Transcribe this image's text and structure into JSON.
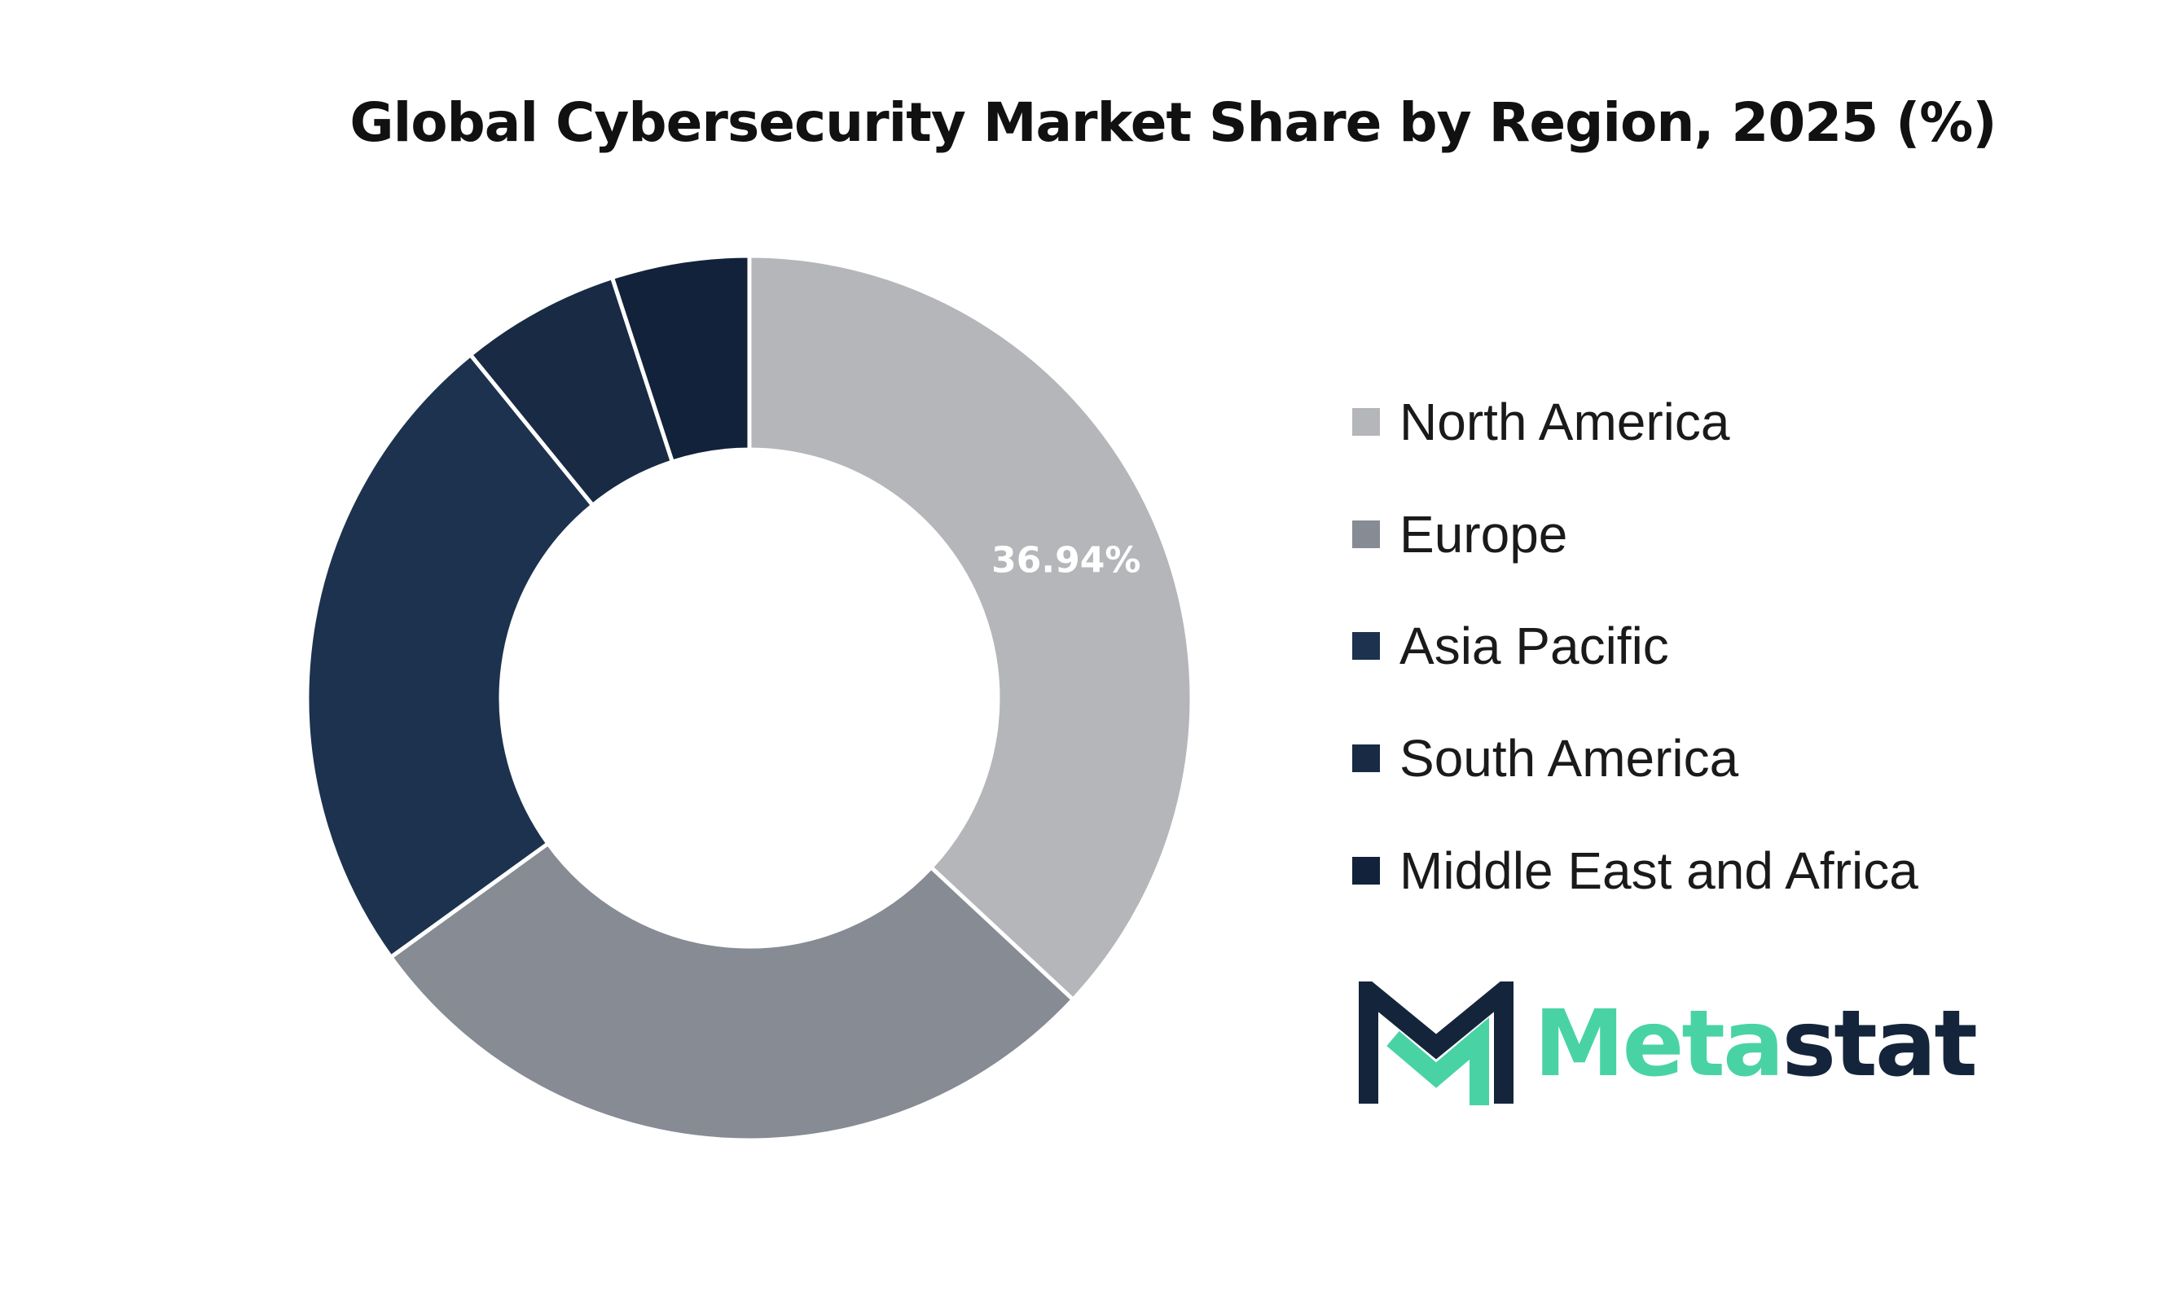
{
  "chart_data": {
    "type": "pie",
    "variant": "donut",
    "title": "Global Cybersecurity Market Share by Region, 2025 (%)",
    "categories": [
      "North America",
      "Europe",
      "Asia Pacific",
      "South America",
      "Middle East and Africa"
    ],
    "values": [
      36.94,
      28.1,
      24.1,
      5.84,
      5.02
    ],
    "colors": [
      "#b5b6b9",
      "#868b94",
      "#1c324e",
      "#182a44",
      "#12223a"
    ],
    "data_labels": [
      "36.94%",
      "",
      "",
      "",
      ""
    ],
    "legend_position": "right"
  },
  "legend": {
    "items": [
      {
        "label": "North America",
        "color": "#b5b6b9"
      },
      {
        "label": "Europe",
        "color": "#868b94"
      },
      {
        "label": "Asia Pacific",
        "color": "#1c324e"
      },
      {
        "label": "South America",
        "color": "#182a44"
      },
      {
        "label": "Middle East and Africa",
        "color": "#12223a"
      }
    ]
  },
  "logo": {
    "text_part1": "Meta",
    "text_part2": "stat",
    "accent_color": "#49d3a4",
    "dark_color": "#14253b"
  }
}
